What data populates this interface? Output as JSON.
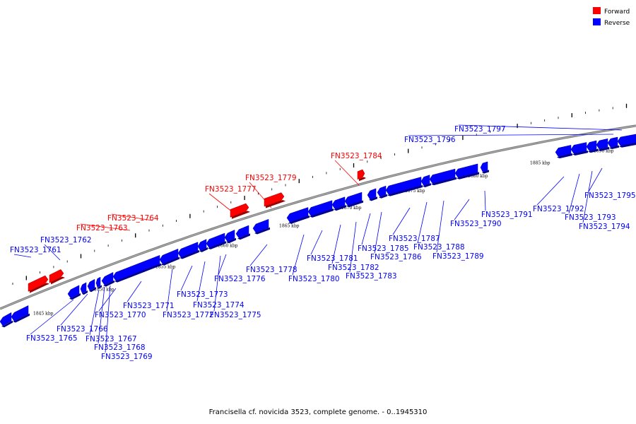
{
  "legend": {
    "forward": {
      "label": "Forward",
      "color": "#ff0000"
    },
    "reverse": {
      "label": "Reverse",
      "color": "#0000ff"
    }
  },
  "caption": "Francisella cf. novicida 3523, complete genome. - 0..1945310",
  "scale_labels": [
    "1845 kbp",
    "1850 kbp",
    "1855 kbp",
    "1860 kbp",
    "1865 kbp",
    "1870 kbp",
    "1875 kbp",
    "1880 kbp",
    "1885 kbp",
    "1890 kbp"
  ],
  "genes": [
    {
      "name": "FN3523_1761",
      "strand": "reverse"
    },
    {
      "name": "FN3523_1762",
      "strand": "reverse"
    },
    {
      "name": "FN3523_1763",
      "strand": "forward"
    },
    {
      "name": "FN3523_1764",
      "strand": "forward"
    },
    {
      "name": "FN3523_1765",
      "strand": "reverse"
    },
    {
      "name": "FN3523_1766",
      "strand": "reverse"
    },
    {
      "name": "FN3523_1767",
      "strand": "reverse"
    },
    {
      "name": "FN3523_1768",
      "strand": "reverse"
    },
    {
      "name": "FN3523_1769",
      "strand": "reverse"
    },
    {
      "name": "FN3523_1770",
      "strand": "reverse"
    },
    {
      "name": "FN3523_1771",
      "strand": "reverse"
    },
    {
      "name": "FN3523_1772",
      "strand": "reverse"
    },
    {
      "name": "FN3523_1773",
      "strand": "reverse"
    },
    {
      "name": "FN3523_1774",
      "strand": "reverse"
    },
    {
      "name": "FN3523_1775",
      "strand": "reverse"
    },
    {
      "name": "FN3523_1776",
      "strand": "reverse"
    },
    {
      "name": "FN3523_1777",
      "strand": "forward"
    },
    {
      "name": "FN3523_1778",
      "strand": "reverse"
    },
    {
      "name": "FN3523_1779",
      "strand": "forward"
    },
    {
      "name": "FN3523_1780",
      "strand": "reverse"
    },
    {
      "name": "FN3523_1781",
      "strand": "reverse"
    },
    {
      "name": "FN3523_1782",
      "strand": "reverse"
    },
    {
      "name": "FN3523_1783",
      "strand": "reverse"
    },
    {
      "name": "FN3523_1784",
      "strand": "forward"
    },
    {
      "name": "FN3523_1785",
      "strand": "reverse"
    },
    {
      "name": "FN3523_1786",
      "strand": "reverse"
    },
    {
      "name": "FN3523_1787",
      "strand": "reverse"
    },
    {
      "name": "FN3523_1788",
      "strand": "reverse"
    },
    {
      "name": "FN3523_1789",
      "strand": "reverse"
    },
    {
      "name": "FN3523_1790",
      "strand": "reverse"
    },
    {
      "name": "FN3523_1791",
      "strand": "reverse"
    },
    {
      "name": "FN3523_1792",
      "strand": "reverse"
    },
    {
      "name": "FN3523_1793",
      "strand": "reverse"
    },
    {
      "name": "FN3523_1794",
      "strand": "reverse"
    },
    {
      "name": "FN3523_1795",
      "strand": "reverse"
    },
    {
      "name": "FN3523_1796",
      "strand": "reverse"
    },
    {
      "name": "FN3523_1797",
      "strand": "reverse"
    }
  ]
}
